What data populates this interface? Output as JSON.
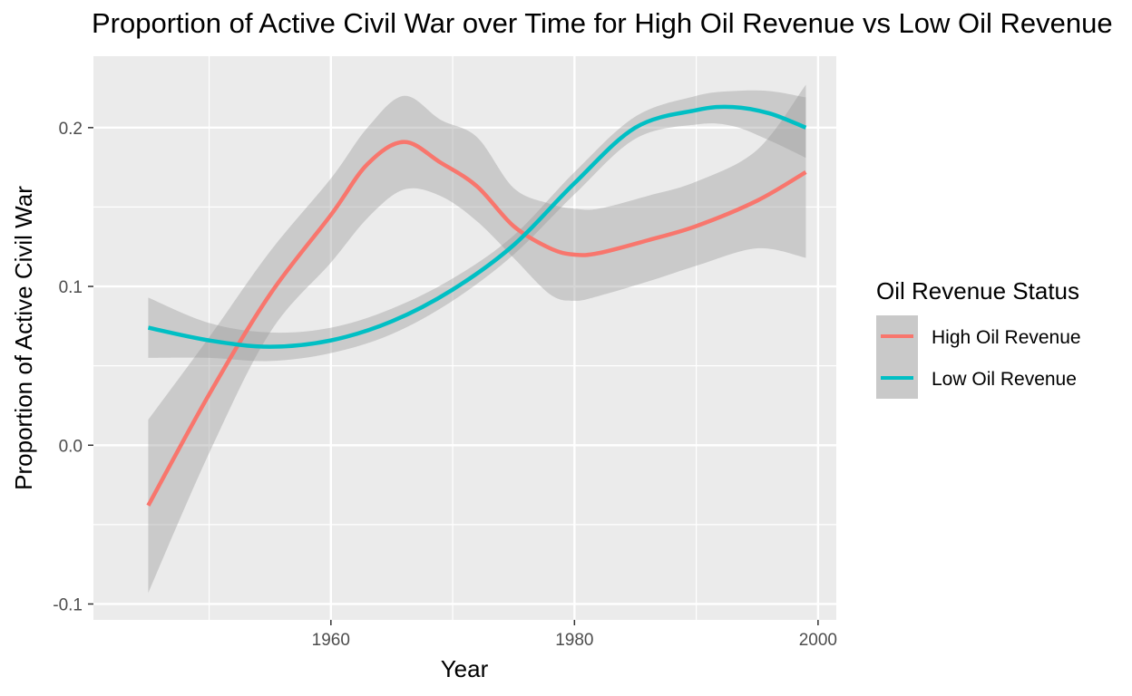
{
  "chart_data": {
    "type": "line",
    "title": "Proportion of Active Civil War over Time for High Oil Revenue vs Low Oil Revenue",
    "xlabel": "Year",
    "ylabel": "Proportion of Active Civil War",
    "xlim": [
      1940.5,
      2001.5
    ],
    "ylim": [
      -0.11,
      0.245
    ],
    "x_ticks": [
      1960,
      1980,
      2000
    ],
    "x_tick_labels": [
      "1960",
      "1980",
      "2000"
    ],
    "y_ticks": [
      -0.1,
      0.0,
      0.1,
      0.2
    ],
    "y_tick_labels": [
      "-0.1",
      "0.0",
      "0.1",
      "0.2"
    ],
    "grid": true,
    "legend": {
      "title": "Oil Revenue Status",
      "placement": "right"
    },
    "series": [
      {
        "name": "High Oil Revenue",
        "color": "#F8766D",
        "x": [
          1945,
          1950,
          1955,
          1960,
          1963,
          1966,
          1969,
          1972,
          1975,
          1978,
          1980,
          1982,
          1986,
          1990,
          1995,
          1999
        ],
        "y": [
          -0.038,
          0.032,
          0.095,
          0.145,
          0.177,
          0.191,
          0.178,
          0.163,
          0.138,
          0.124,
          0.12,
          0.121,
          0.129,
          0.138,
          0.154,
          0.172
        ],
        "ci_lower": [
          -0.093,
          -0.005,
          0.071,
          0.115,
          0.143,
          0.161,
          0.157,
          0.141,
          0.118,
          0.095,
          0.091,
          0.094,
          0.103,
          0.113,
          0.124,
          0.118
        ],
        "ci_upper": [
          0.016,
          0.068,
          0.122,
          0.168,
          0.2,
          0.22,
          0.205,
          0.194,
          0.162,
          0.152,
          0.149,
          0.149,
          0.157,
          0.166,
          0.186,
          0.227
        ]
      },
      {
        "name": "Low Oil Revenue",
        "color": "#00BFC4",
        "x": [
          1945,
          1950,
          1955,
          1960,
          1965,
          1970,
          1975,
          1980,
          1985,
          1990,
          1993,
          1996,
          1999
        ],
        "y": [
          0.074,
          0.066,
          0.062,
          0.066,
          0.078,
          0.098,
          0.126,
          0.165,
          0.2,
          0.211,
          0.213,
          0.209,
          0.2
        ],
        "ci_lower": [
          0.055,
          0.055,
          0.053,
          0.058,
          0.07,
          0.091,
          0.12,
          0.158,
          0.193,
          0.202,
          0.201,
          0.192,
          0.181
        ],
        "ci_upper": [
          0.093,
          0.077,
          0.071,
          0.074,
          0.086,
          0.105,
          0.132,
          0.172,
          0.207,
          0.22,
          0.223,
          0.223,
          0.219
        ]
      }
    ],
    "ci_band_color": "#999999"
  }
}
